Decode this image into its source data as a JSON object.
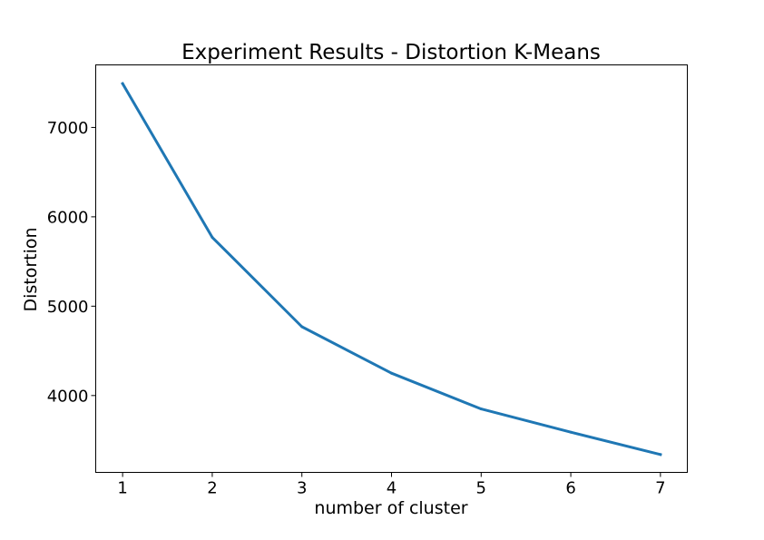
{
  "chart_data": {
    "type": "line",
    "title": "Experiment Results - Distortion K-Means",
    "xlabel": "number of cluster",
    "ylabel": "Distortion",
    "x": [
      1,
      2,
      3,
      4,
      5,
      6,
      7
    ],
    "xticks": [
      "1",
      "2",
      "3",
      "4",
      "5",
      "6",
      "7"
    ],
    "yticks": [
      "4000",
      "5000",
      "6000",
      "7000"
    ],
    "xlim": [
      0.7,
      7.3
    ],
    "ylim": [
      3140,
      7700
    ],
    "grid": false,
    "series": [
      {
        "values": [
          7490,
          5770,
          4770,
          4250,
          3850,
          3590,
          3340
        ],
        "color": "#1f77b4"
      }
    ]
  }
}
